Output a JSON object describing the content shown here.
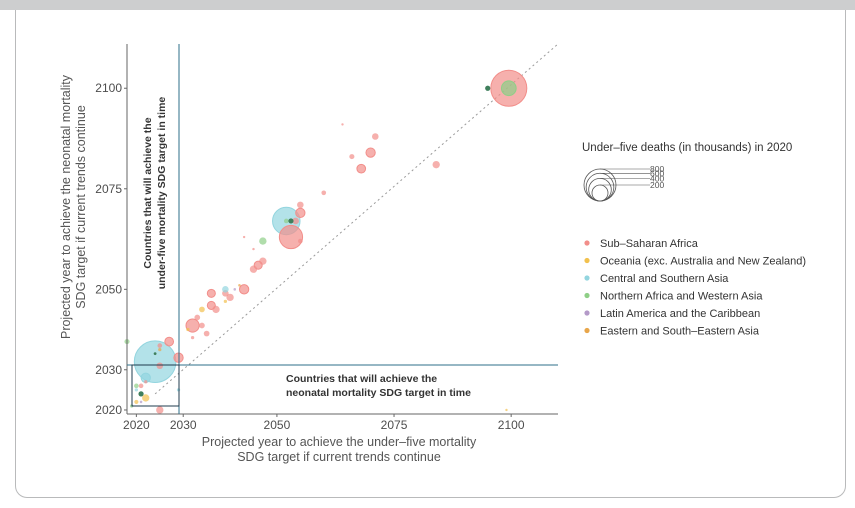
{
  "chart_data": {
    "type": "scatter",
    "xlabel_lines": [
      "Projected year to achieve the under–five mortality",
      "SDG target if current trends continue"
    ],
    "ylabel_lines": [
      "Projected year to achieve the neonatal mortality",
      "SDG target if current trends continue"
    ],
    "x_ticks": [
      "2020",
      "2030",
      "2050",
      "2075",
      "2100"
    ],
    "y_ticks": [
      "2020",
      "2030",
      "2050",
      "2075",
      "2100"
    ],
    "xlim": [
      2018,
      2110
    ],
    "ylim": [
      2019,
      2111
    ],
    "size_legend": {
      "title": "Under–five deaths (in thousands) in 2020",
      "values": [
        800,
        600,
        400,
        200
      ],
      "labels": [
        "800",
        "600",
        "400",
        "200"
      ]
    },
    "annotations": {
      "under5": [
        "Countries that will achieve the",
        "under-five mortality SDG target in time"
      ],
      "neonatal": [
        "Countries that will achieve the",
        "neonatal mortality SDG target in time"
      ]
    },
    "series": [
      {
        "name": "Sub–Saharan Africa",
        "color": "#f28e8a",
        "points": [
          [
            2099.5,
            2100,
            600
          ],
          [
            2084,
            2081,
            25
          ],
          [
            2071,
            2088,
            20
          ],
          [
            2070,
            2084,
            40
          ],
          [
            2068,
            2080,
            35
          ],
          [
            2066,
            2083,
            12
          ],
          [
            2064,
            2091,
            2
          ],
          [
            2060,
            2074,
            10
          ],
          [
            2055,
            2071,
            20
          ],
          [
            2055,
            2069,
            40
          ],
          [
            2054,
            2067,
            20
          ],
          [
            2053,
            2063,
            250
          ],
          [
            2055,
            2062,
            10
          ],
          [
            2047,
            2057,
            25
          ],
          [
            2046,
            2056,
            30
          ],
          [
            2045,
            2055,
            25
          ],
          [
            2043,
            2063,
            2
          ],
          [
            2045,
            2060,
            2
          ],
          [
            2043,
            2050,
            40
          ],
          [
            2040,
            2048,
            25
          ],
          [
            2039,
            2049,
            20
          ],
          [
            2036,
            2049,
            30
          ],
          [
            2037,
            2045,
            25
          ],
          [
            2036,
            2046,
            30
          ],
          [
            2033,
            2043,
            15
          ],
          [
            2032,
            2041,
            80
          ],
          [
            2034,
            2041,
            15
          ],
          [
            2035,
            2039,
            15
          ],
          [
            2032,
            2038,
            5
          ],
          [
            2027,
            2037,
            35
          ],
          [
            2025,
            2036,
            10
          ],
          [
            2029,
            2033,
            40
          ],
          [
            2025,
            2031,
            20
          ],
          [
            2022,
            2027,
            5
          ],
          [
            2025,
            2020,
            25
          ],
          [
            2021,
            2026,
            10
          ]
        ]
      },
      {
        "name": "Oceania (exc. Australia and New Zealand)",
        "color": "#f2c14e",
        "points": [
          [
            2034,
            2045,
            15
          ],
          [
            2031,
            2040,
            5
          ],
          [
            2039,
            2047,
            5
          ],
          [
            2022,
            2023,
            25
          ],
          [
            2020,
            2022,
            8
          ],
          [
            2099,
            2020,
            2
          ]
        ]
      },
      {
        "name": "Central and Southern Asia",
        "color": "#93d5df",
        "points": [
          [
            2052,
            2067,
            350
          ],
          [
            2024,
            2032,
            800
          ],
          [
            2039,
            2050,
            20
          ],
          [
            2022,
            2028,
            40
          ],
          [
            2029,
            2025,
            5
          ],
          [
            2020,
            2025,
            5
          ]
        ]
      },
      {
        "name": "Northern Africa and Western Asia",
        "color": "#8fcf87",
        "points": [
          [
            2099.5,
            2100,
            100
          ],
          [
            2047,
            2062,
            25
          ],
          [
            2052,
            2067,
            10
          ],
          [
            2018,
            2037,
            12
          ],
          [
            2020,
            2026,
            10
          ],
          [
            2019,
            2021,
            5
          ]
        ]
      },
      {
        "name": "Latin America and the Caribbean",
        "color": "#b49ac8",
        "points": [
          [
            2041,
            2050,
            3
          ],
          [
            2021,
            2022,
            3
          ]
        ]
      },
      {
        "name": "Eastern and South–Eastern Asia",
        "color": "#e8a64a",
        "points": [
          [
            2025,
            2035,
            5
          ],
          [
            2042,
            2051,
            3
          ]
        ]
      }
    ],
    "dark_points": [
      [
        2095,
        2100,
        6
      ],
      [
        2053,
        2067,
        6
      ],
      [
        2021,
        2024,
        6
      ],
      [
        2024,
        2034,
        3
      ]
    ]
  }
}
